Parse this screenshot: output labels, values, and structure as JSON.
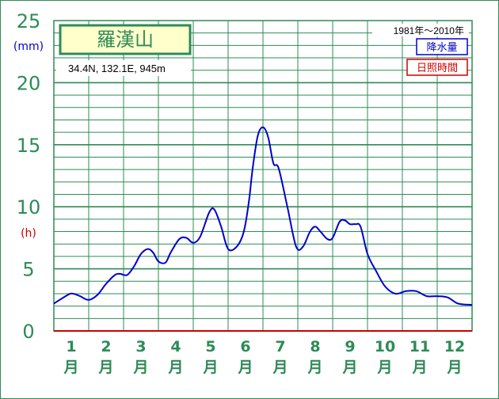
{
  "chart_data": {
    "type": "line",
    "title": "羅漢山",
    "subtitle": "34.4N,  132.1E,  945m",
    "period": "1981年～2010年",
    "ylabel_precip_unit": "(mm)",
    "ylabel_sun_unit": "(h)",
    "legend": [
      {
        "label": "降水量",
        "color": "#0000cc"
      },
      {
        "label": "日照時間",
        "color": "#cc0000"
      }
    ],
    "ylim": [
      0,
      25
    ],
    "yticks": [
      0,
      5,
      10,
      15,
      20,
      25
    ],
    "ytick_labels": [
      "0",
      "5",
      "10",
      "15",
      "20",
      "25"
    ],
    "months": [
      {
        "num": "1",
        "unit": "月"
      },
      {
        "num": "2",
        "unit": "月"
      },
      {
        "num": "3",
        "unit": "月"
      },
      {
        "num": "4",
        "unit": "月"
      },
      {
        "num": "5",
        "unit": "月"
      },
      {
        "num": "6",
        "unit": "月"
      },
      {
        "num": "7",
        "unit": "月"
      },
      {
        "num": "8",
        "unit": "月"
      },
      {
        "num": "9",
        "unit": "月"
      },
      {
        "num": "10",
        "unit": "月"
      },
      {
        "num": "11",
        "unit": "月"
      },
      {
        "num": "12",
        "unit": "月"
      }
    ],
    "x_range": [
      0.5,
      12.5
    ],
    "series": [
      {
        "name": "降水量",
        "color": "#0000cc",
        "x": [
          0.5,
          0.9,
          1.05,
          1.25,
          1.5,
          1.75,
          2.0,
          2.25,
          2.4,
          2.6,
          2.8,
          3.0,
          3.2,
          3.35,
          3.5,
          3.7,
          3.85,
          4.1,
          4.3,
          4.5,
          4.7,
          4.95,
          5.1,
          5.3,
          5.5,
          5.75,
          5.95,
          6.1,
          6.2,
          6.35,
          6.5,
          6.65,
          6.8,
          6.95,
          7.2,
          7.45,
          7.65,
          7.85,
          8.0,
          8.15,
          8.35,
          8.5,
          8.7,
          8.85,
          9.0,
          9.15,
          9.3,
          9.5,
          9.75,
          10.0,
          10.3,
          10.6,
          10.9,
          11.2,
          11.5,
          11.8,
          12.1,
          12.5
        ],
        "y": [
          2.2,
          2.9,
          3.0,
          2.8,
          2.5,
          2.9,
          3.8,
          4.5,
          4.6,
          4.5,
          5.2,
          6.2,
          6.6,
          6.3,
          5.6,
          5.5,
          6.3,
          7.4,
          7.5,
          7.1,
          7.6,
          9.5,
          9.8,
          8.4,
          6.6,
          6.8,
          8.0,
          10.5,
          13.0,
          15.7,
          16.4,
          15.6,
          13.5,
          13.1,
          10.0,
          6.8,
          6.8,
          8.0,
          8.4,
          8.0,
          7.4,
          7.5,
          8.8,
          8.9,
          8.6,
          8.6,
          8.4,
          6.2,
          4.8,
          3.6,
          3.0,
          3.2,
          3.2,
          2.8,
          2.8,
          2.7,
          2.2,
          2.1
        ]
      }
    ],
    "grid": true
  }
}
